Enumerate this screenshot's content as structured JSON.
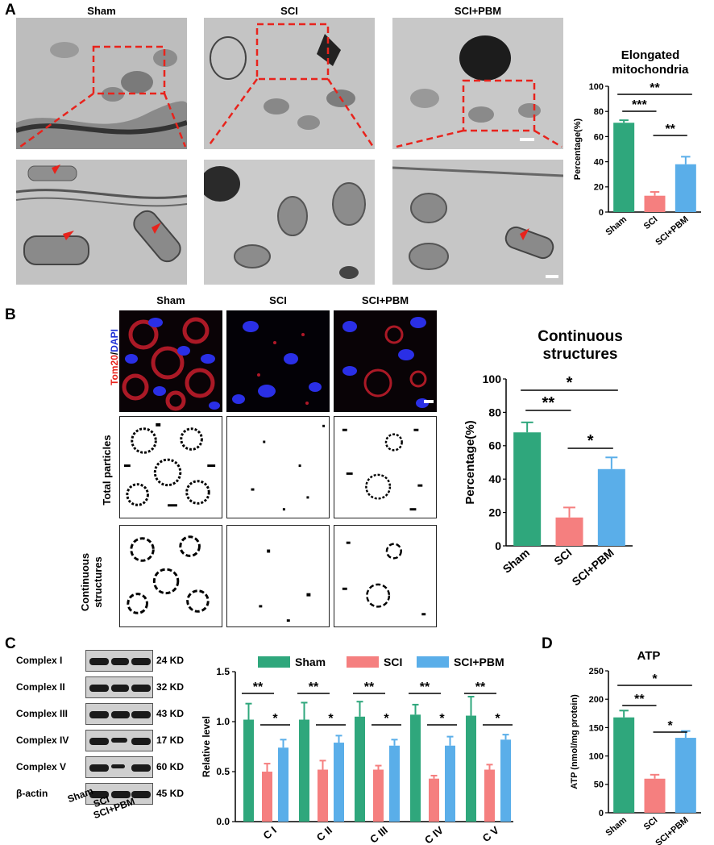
{
  "panelA": {
    "label": "A",
    "columns": [
      "Sham",
      "SCI",
      "SCI+PBM"
    ],
    "chart": {
      "title_line1": "Elongated",
      "title_line2": "mitochondria"
    }
  },
  "panelB": {
    "label": "B",
    "columns": [
      "Sham",
      "SCI",
      "SCI+PBM"
    ],
    "row_label_tom20": "Tom20",
    "row_label_sep": "/",
    "row_label_dapi": "DAPI",
    "row_label_total": "Total particles",
    "row_label_cont1": "Continuous",
    "row_label_cont2": "structures",
    "chart": {
      "title_line1": "Continuous",
      "title_line2": "structures"
    }
  },
  "panelC": {
    "label": "C",
    "blot_rows": [
      {
        "name": "Complex I",
        "kd": "24 KD"
      },
      {
        "name": "Complex II",
        "kd": "32 KD"
      },
      {
        "name": "Complex III",
        "kd": "43 KD"
      },
      {
        "name": "Complex IV",
        "kd": "17 KD"
      },
      {
        "name": "Complex V",
        "kd": "60 KD"
      },
      {
        "name": "β-actin",
        "kd": "45 KD"
      }
    ],
    "lane_labels": [
      "Sham",
      "SCI",
      "SCI+PBM"
    ]
  },
  "panelD": {
    "label": "D",
    "chart": {
      "title": "ATP"
    }
  },
  "colors": {
    "sham": "#2fa77c",
    "sci": "#f57f7f",
    "pbm": "#5aaee9"
  },
  "chart_data": [
    {
      "id": "elongated",
      "type": "bar",
      "title": "Elongated mitochondria",
      "categories": [
        "Sham",
        "SCI",
        "SCI+PBM"
      ],
      "values": [
        71,
        13,
        38
      ],
      "errors": [
        2,
        3,
        6
      ],
      "ylabel": "Percentage(%)",
      "ylim": [
        0,
        100
      ],
      "yticks": [
        0,
        20,
        40,
        60,
        80,
        100
      ],
      "significance": [
        {
          "from": 0,
          "to": 2,
          "label": "**"
        },
        {
          "from": 0,
          "to": 1,
          "label": "***"
        },
        {
          "from": 1,
          "to": 2,
          "label": "**"
        }
      ]
    },
    {
      "id": "continuous",
      "type": "bar",
      "title": "Continuous structures",
      "categories": [
        "Sham",
        "SCI",
        "SCI+PBM"
      ],
      "values": [
        68,
        17,
        46
      ],
      "errors": [
        6,
        6,
        7
      ],
      "ylabel": "Percentage(%)",
      "ylim": [
        0,
        100
      ],
      "yticks": [
        0,
        20,
        40,
        60,
        80,
        100
      ],
      "significance": [
        {
          "from": 0,
          "to": 2,
          "label": "*"
        },
        {
          "from": 0,
          "to": 1,
          "label": "**"
        },
        {
          "from": 1,
          "to": 2,
          "label": "*"
        }
      ]
    },
    {
      "id": "complexes",
      "type": "bar",
      "categories": [
        "C I",
        "C II",
        "C III",
        "C IV",
        "C V"
      ],
      "series": [
        {
          "name": "Sham",
          "values": [
            1.02,
            1.02,
            1.05,
            1.07,
            1.06
          ],
          "errors": [
            0.16,
            0.17,
            0.15,
            0.1,
            0.19
          ]
        },
        {
          "name": "SCI",
          "values": [
            0.5,
            0.52,
            0.52,
            0.43,
            0.52
          ],
          "errors": [
            0.08,
            0.09,
            0.04,
            0.03,
            0.05
          ]
        },
        {
          "name": "SCI+PBM",
          "values": [
            0.74,
            0.79,
            0.76,
            0.76,
            0.82
          ],
          "errors": [
            0.08,
            0.07,
            0.06,
            0.09,
            0.05
          ]
        }
      ],
      "ylabel": "Relative level",
      "ylim": [
        0,
        1.5
      ],
      "yticks": [
        "0.0",
        "0.5",
        "1.0",
        "1.5"
      ],
      "legend": "top",
      "significance_upper": "**",
      "significance_lower": "*"
    },
    {
      "id": "atp",
      "type": "bar",
      "title": "ATP",
      "categories": [
        "Sham",
        "SCI",
        "SCI+PBM"
      ],
      "values": [
        168,
        60,
        132
      ],
      "errors": [
        12,
        7,
        12
      ],
      "ylabel": "ATP (nmol/mg protein)",
      "ylim": [
        0,
        250
      ],
      "yticks": [
        0,
        50,
        100,
        150,
        200,
        250
      ],
      "significance": [
        {
          "from": 0,
          "to": 2,
          "label": "*"
        },
        {
          "from": 0,
          "to": 1,
          "label": "**"
        },
        {
          "from": 1,
          "to": 2,
          "label": "*"
        }
      ]
    }
  ]
}
